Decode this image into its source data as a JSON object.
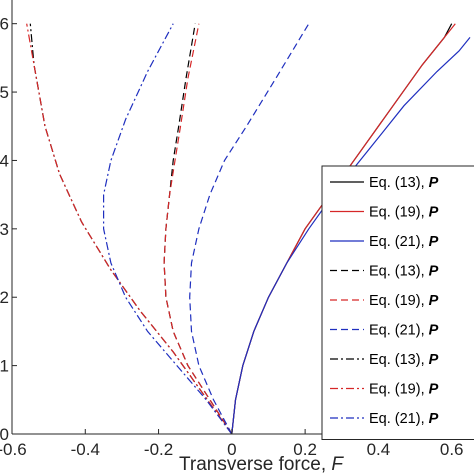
{
  "chart_data": {
    "type": "line",
    "title": "",
    "xlabel": "Transverse force, ",
    "xlabel_symbol": "F",
    "ylabel": "",
    "xlim": [
      -0.6,
      0.65
    ],
    "ylim": [
      0,
      0.62
    ],
    "x_ticks": [
      -0.6,
      -0.4,
      -0.2,
      0,
      0.2,
      0.4,
      0.6
    ],
    "x_tick_labels": [
      "-0.6",
      "-0.4",
      "-0.2",
      "0",
      "0.2",
      "0.4",
      "0.6"
    ],
    "y_ticks": [
      0,
      0.1,
      0.2,
      0.3,
      0.4,
      0.5,
      0.6
    ],
    "y_tick_labels": [
      "0",
      "1",
      "2",
      "3",
      "4",
      "5",
      "6"
    ],
    "grid": false,
    "legend_position": "right",
    "series": [
      {
        "name": "Eq. (13), P",
        "color": "#000000",
        "dash": "solid",
        "x": [
          0,
          0.01,
          0.03,
          0.06,
          0.1,
          0.15,
          0.2,
          0.28,
          0.36,
          0.44,
          0.52,
          0.58,
          0.6
        ],
        "y": [
          0,
          0.05,
          0.1,
          0.15,
          0.2,
          0.25,
          0.3,
          0.36,
          0.42,
          0.48,
          0.54,
          0.58,
          0.6
        ]
      },
      {
        "name": "Eq. (19), P",
        "color": "#d62728",
        "dash": "solid",
        "x": [
          0,
          0.01,
          0.03,
          0.06,
          0.1,
          0.15,
          0.2,
          0.28,
          0.36,
          0.44,
          0.52,
          0.58,
          0.61
        ],
        "y": [
          0,
          0.05,
          0.1,
          0.15,
          0.2,
          0.25,
          0.3,
          0.36,
          0.42,
          0.48,
          0.54,
          0.58,
          0.6
        ]
      },
      {
        "name": "Eq. (21), P",
        "color": "#1f2fbf",
        "dash": "solid",
        "x": [
          0,
          0.01,
          0.03,
          0.06,
          0.1,
          0.15,
          0.21,
          0.29,
          0.38,
          0.47,
          0.56,
          0.62,
          0.65
        ],
        "y": [
          0,
          0.05,
          0.1,
          0.15,
          0.2,
          0.25,
          0.3,
          0.36,
          0.42,
          0.48,
          0.53,
          0.56,
          0.58
        ]
      },
      {
        "name": "Eq. (13), P",
        "color": "#000000",
        "dash": "dashed",
        "x": [
          0,
          -0.06,
          -0.12,
          -0.16,
          -0.18,
          -0.185,
          -0.18,
          -0.17,
          -0.16,
          -0.145,
          -0.125,
          -0.1
        ],
        "y": [
          0,
          0.05,
          0.1,
          0.15,
          0.2,
          0.25,
          0.3,
          0.35,
          0.4,
          0.45,
          0.52,
          0.6
        ]
      },
      {
        "name": "Eq. (19), P",
        "color": "#d62728",
        "dash": "dashed",
        "x": [
          0,
          -0.06,
          -0.12,
          -0.16,
          -0.18,
          -0.185,
          -0.18,
          -0.17,
          -0.155,
          -0.14,
          -0.12,
          -0.09
        ],
        "y": [
          0,
          0.05,
          0.1,
          0.15,
          0.2,
          0.25,
          0.3,
          0.35,
          0.4,
          0.45,
          0.52,
          0.6
        ]
      },
      {
        "name": "Eq. (21), P",
        "color": "#1f2fbf",
        "dash": "dashed",
        "x": [
          0,
          -0.05,
          -0.09,
          -0.11,
          -0.115,
          -0.11,
          -0.09,
          -0.06,
          -0.02,
          0.04,
          0.12,
          0.21
        ],
        "y": [
          0,
          0.05,
          0.1,
          0.15,
          0.2,
          0.25,
          0.3,
          0.35,
          0.4,
          0.45,
          0.52,
          0.6
        ]
      },
      {
        "name": "Eq. (13), P",
        "color": "#000000",
        "dash": "dashdot",
        "x": [
          0,
          -0.08,
          -0.16,
          -0.25,
          -0.33,
          -0.41,
          -0.47,
          -0.51,
          -0.54,
          -0.55
        ],
        "y": [
          0,
          0.06,
          0.12,
          0.18,
          0.24,
          0.31,
          0.38,
          0.45,
          0.54,
          0.6
        ]
      },
      {
        "name": "Eq. (19), P",
        "color": "#d62728",
        "dash": "dashdot",
        "x": [
          0,
          -0.08,
          -0.16,
          -0.25,
          -0.33,
          -0.41,
          -0.47,
          -0.51,
          -0.54,
          -0.56
        ],
        "y": [
          0,
          0.06,
          0.12,
          0.18,
          0.24,
          0.31,
          0.38,
          0.45,
          0.54,
          0.6
        ]
      },
      {
        "name": "Eq. (21), P",
        "color": "#1f2fbf",
        "dash": "dashdot",
        "x": [
          0,
          -0.07,
          -0.15,
          -0.23,
          -0.29,
          -0.33,
          -0.35,
          -0.35,
          -0.33,
          -0.29,
          -0.23,
          -0.16
        ],
        "y": [
          0,
          0.05,
          0.1,
          0.15,
          0.2,
          0.25,
          0.3,
          0.35,
          0.4,
          0.46,
          0.53,
          0.6
        ]
      }
    ]
  }
}
